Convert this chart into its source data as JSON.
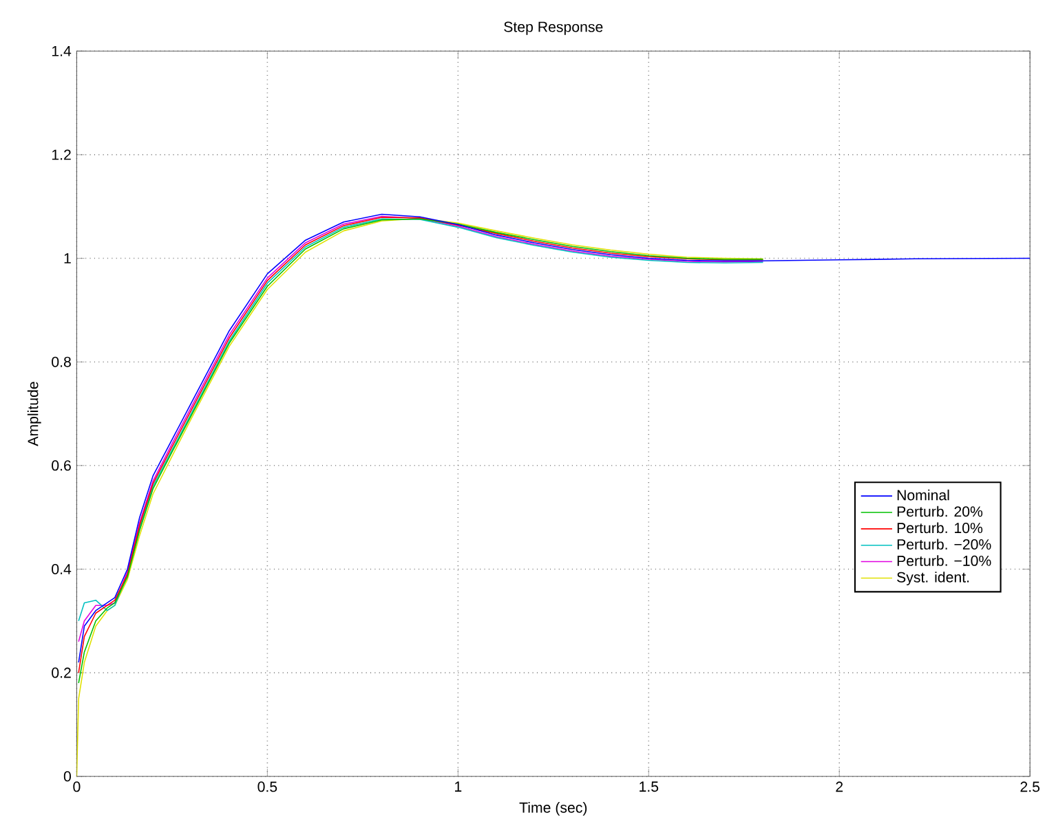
{
  "chart_data": {
    "type": "line",
    "title": "Step Response",
    "xlabel": "Time (sec)",
    "ylabel": "Amplitude",
    "xlim": [
      0,
      2.5
    ],
    "ylim": [
      0,
      1.4
    ],
    "xticks": [
      0,
      0.5,
      1,
      1.5,
      2,
      2.5
    ],
    "yticks": [
      0,
      0.2,
      0.4,
      0.6,
      0.8,
      1,
      1.2,
      1.4
    ],
    "grid": true,
    "legend": "right",
    "line_style": "solid",
    "marker": "none",
    "x": [
      0,
      0.005,
      0.02,
      0.05,
      0.08,
      0.1,
      0.133,
      0.165,
      0.2,
      0.25,
      0.3,
      0.4,
      0.5,
      0.6,
      0.7,
      0.8,
      0.9,
      1.0,
      1.1,
      1.2,
      1.3,
      1.4,
      1.5,
      1.6,
      1.7,
      1.8,
      2.0,
      2.2,
      2.5
    ],
    "series": [
      {
        "name": "Syst. ident.",
        "color": "#e0e000",
        "values": [
          0,
          0.15,
          0.22,
          0.29,
          0.32,
          0.33,
          0.38,
          0.465,
          0.545,
          0.618,
          0.69,
          0.83,
          0.94,
          1.012,
          1.053,
          1.072,
          1.077,
          1.068,
          1.053,
          1.039,
          1.026,
          1.016,
          1.008,
          1.002,
          1.0,
          0.999,
          null,
          null,
          null
        ]
      },
      {
        "name": "Perturb. −10%",
        "color": "#e000e0",
        "values": [
          null,
          0.26,
          0.3,
          0.33,
          0.33,
          0.335,
          0.395,
          0.49,
          0.57,
          0.642,
          0.712,
          0.852,
          0.962,
          1.03,
          1.066,
          1.081,
          1.077,
          1.062,
          1.042,
          1.027,
          1.014,
          1.004,
          0.998,
          0.994,
          0.993,
          0.994,
          null,
          null,
          null
        ]
      },
      {
        "name": "Perturb. −20%",
        "color": "#00c0c0",
        "values": [
          null,
          0.3,
          0.335,
          0.34,
          0.32,
          0.33,
          0.39,
          0.48,
          0.56,
          0.63,
          0.7,
          0.84,
          0.952,
          1.022,
          1.06,
          1.076,
          1.075,
          1.06,
          1.04,
          1.025,
          1.012,
          1.002,
          0.996,
          0.992,
          0.991,
          0.992,
          null,
          null,
          null
        ]
      },
      {
        "name": "Perturb. 10%",
        "color": "#ff0000",
        "values": [
          null,
          0.2,
          0.27,
          0.315,
          0.33,
          0.34,
          0.39,
          0.485,
          0.565,
          0.636,
          0.706,
          0.846,
          0.957,
          1.026,
          1.063,
          1.079,
          1.078,
          1.064,
          1.048,
          1.033,
          1.02,
          1.01,
          1.003,
          0.999,
          0.997,
          0.997,
          null,
          null,
          null
        ]
      },
      {
        "name": "Perturb. 20%",
        "color": "#00c000",
        "values": [
          null,
          0.18,
          0.24,
          0.3,
          0.325,
          0.335,
          0.385,
          0.475,
          0.555,
          0.626,
          0.696,
          0.836,
          0.946,
          1.018,
          1.057,
          1.074,
          1.076,
          1.066,
          1.05,
          1.036,
          1.023,
          1.013,
          1.005,
          1.0,
          0.998,
          0.998,
          null,
          null,
          null
        ]
      },
      {
        "name": "Nominal",
        "color": "#0000ff",
        "values": [
          null,
          0.22,
          0.29,
          0.32,
          0.335,
          0.345,
          0.4,
          0.5,
          0.58,
          0.65,
          0.72,
          0.86,
          0.97,
          1.035,
          1.07,
          1.085,
          1.08,
          1.065,
          1.045,
          1.03,
          1.017,
          1.007,
          1.0,
          0.996,
          0.995,
          0.995,
          0.997,
          0.999,
          1.0
        ]
      }
    ]
  }
}
